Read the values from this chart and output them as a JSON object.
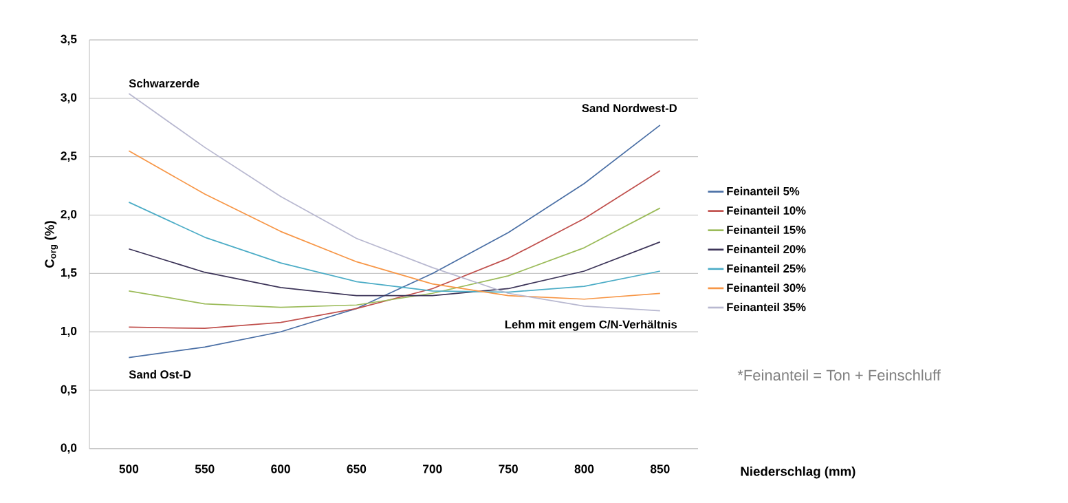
{
  "chart_data": {
    "type": "line",
    "xlabel": "Niederschlag (mm)",
    "ylabel": "C$_{org}$ (%)",
    "x": [
      500,
      550,
      600,
      650,
      700,
      750,
      800,
      850
    ],
    "series": [
      {
        "name": "Feinanteil 5%",
        "color": "#4a6fa5",
        "values": [
          0.78,
          0.87,
          1.0,
          1.2,
          1.5,
          1.85,
          2.27,
          2.77
        ]
      },
      {
        "name": "Feinanteil 10%",
        "color": "#c0504d",
        "values": [
          1.04,
          1.03,
          1.08,
          1.2,
          1.37,
          1.63,
          1.97,
          2.38
        ]
      },
      {
        "name": "Feinanteil 15%",
        "color": "#9bbb59",
        "values": [
          1.35,
          1.24,
          1.21,
          1.23,
          1.33,
          1.48,
          1.72,
          2.06
        ]
      },
      {
        "name": "Feinanteil 20%",
        "color": "#3d3559",
        "values": [
          1.71,
          1.51,
          1.38,
          1.31,
          1.31,
          1.37,
          1.52,
          1.77
        ]
      },
      {
        "name": "Feinanteil 25%",
        "color": "#4bacc6",
        "values": [
          2.11,
          1.81,
          1.59,
          1.43,
          1.35,
          1.34,
          1.39,
          1.52
        ]
      },
      {
        "name": "Feinanteil 30%",
        "color": "#f79646",
        "values": [
          2.55,
          2.18,
          1.86,
          1.6,
          1.41,
          1.31,
          1.28,
          1.33
        ]
      },
      {
        "name": "Feinanteil 35%",
        "color": "#b8b8d0",
        "values": [
          3.04,
          2.58,
          2.16,
          1.8,
          1.55,
          1.33,
          1.22,
          1.18
        ]
      }
    ],
    "xlim": [
      474,
      875
    ],
    "ylim": [
      0,
      3.5
    ],
    "xticks": [
      500,
      550,
      600,
      650,
      700,
      750,
      800,
      850
    ],
    "yticks": [
      {
        "value": 0,
        "label": "0,0"
      },
      {
        "value": 0.5,
        "label": "0,5"
      },
      {
        "value": 1,
        "label": "1,0"
      },
      {
        "value": 1.5,
        "label": "1,5"
      },
      {
        "value": 2,
        "label": "2,0"
      },
      {
        "value": 2.5,
        "label": "2,5"
      },
      {
        "value": 3,
        "label": "3,0"
      },
      {
        "value": 3.5,
        "label": "3,5"
      }
    ],
    "grid": "y",
    "legend": "right",
    "marker": "none",
    "line_style": "solid",
    "annotations": [
      "Schwarzerde",
      "Sand Ost-D",
      "Sand Nordwest-D",
      "Lehm mit engem C/N-Verhältnis",
      "*Feinanteil = Ton + Feinschluff"
    ]
  }
}
